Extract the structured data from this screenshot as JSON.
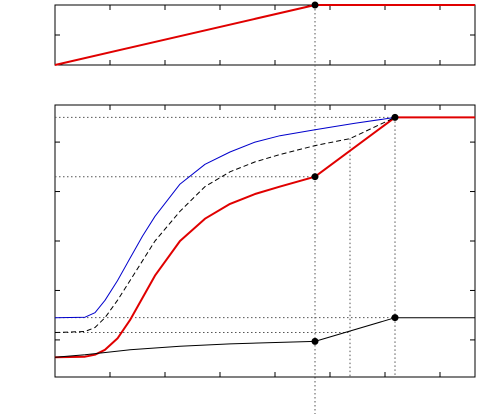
{
  "chart_data": [
    {
      "type": "line",
      "title": "",
      "xlabel": "",
      "ylabel": "",
      "xlim": [
        0,
        16.8
      ],
      "ylim": [
        0,
        1
      ],
      "grid": false,
      "legend": "none",
      "series": [
        {
          "color": "#e00000",
          "line": "solid",
          "x": [
            0,
            10.4,
            16.8
          ],
          "y": [
            0.0,
            1.0,
            1.0
          ]
        }
      ],
      "markers": [
        {
          "x": 10.4,
          "y": 1.0
        }
      ],
      "reference_lines": [
        {
          "orientation": "vertical",
          "x": 10.4
        }
      ]
    },
    {
      "type": "line",
      "title": "",
      "xlabel": "",
      "ylabel": "",
      "xlim": [
        0,
        16.8
      ],
      "ylim": [
        0,
        5.5
      ],
      "grid": false,
      "legend": "none",
      "series": [
        {
          "color": "#e00000",
          "line": "solid",
          "x": [
            0,
            1.2,
            1.6,
            2.0,
            2.5,
            3.0,
            3.5,
            4.0,
            5.0,
            6.0,
            7.0,
            8.0,
            9.0,
            10.4,
            13.6,
            16.8
          ],
          "y": [
            0.4,
            0.41,
            0.45,
            0.55,
            0.78,
            1.15,
            1.6,
            2.05,
            2.75,
            3.2,
            3.5,
            3.7,
            3.85,
            4.05,
            5.25,
            5.25
          ]
        },
        {
          "color": "#0000cc",
          "line": "solid",
          "x": [
            0,
            1.2,
            1.6,
            2.0,
            2.5,
            3.0,
            3.5,
            4.0,
            5.0,
            6.0,
            7.0,
            8.0,
            9.0,
            10.4,
            12.0,
            13.6
          ],
          "y": [
            1.2,
            1.21,
            1.3,
            1.55,
            1.95,
            2.4,
            2.85,
            3.25,
            3.9,
            4.3,
            4.55,
            4.75,
            4.88,
            5.0,
            5.13,
            5.25
          ]
        },
        {
          "color": "#000000",
          "line": "dashed",
          "x": [
            0,
            1.2,
            1.6,
            2.0,
            2.5,
            3.0,
            3.5,
            4.0,
            5.0,
            6.0,
            7.0,
            8.0,
            9.0,
            10.4,
            11.8,
            13.6
          ],
          "y": [
            0.9,
            0.92,
            1.0,
            1.2,
            1.55,
            1.95,
            2.35,
            2.75,
            3.35,
            3.85,
            4.15,
            4.35,
            4.5,
            4.68,
            4.82,
            5.25
          ]
        },
        {
          "color": "#000000",
          "line": "solid",
          "x": [
            0,
            1.2,
            3.0,
            5.0,
            7.0,
            9.0,
            10.4,
            13.6,
            16.8
          ],
          "y": [
            0.4,
            0.45,
            0.55,
            0.62,
            0.67,
            0.7,
            0.72,
            1.2,
            1.2
          ]
        }
      ],
      "markers": [
        {
          "x": 10.4,
          "y": 4.05
        },
        {
          "x": 13.6,
          "y": 5.25
        },
        {
          "x": 10.4,
          "y": 0.72
        },
        {
          "x": 13.6,
          "y": 1.2
        }
      ],
      "reference_lines": [
        {
          "orientation": "horizontal",
          "y": 5.25,
          "x_end": 13.6
        },
        {
          "orientation": "horizontal",
          "y": 4.05,
          "x_end": 10.4
        },
        {
          "orientation": "horizontal",
          "y": 1.2,
          "x_end": 13.6
        },
        {
          "orientation": "horizontal",
          "y": 0.9,
          "x_end": 11.8
        },
        {
          "orientation": "vertical",
          "x": 10.4
        },
        {
          "orientation": "vertical",
          "x": 11.8,
          "y_end": 4.82
        },
        {
          "orientation": "vertical",
          "x": 13.6,
          "y_end": 5.25
        }
      ]
    }
  ]
}
